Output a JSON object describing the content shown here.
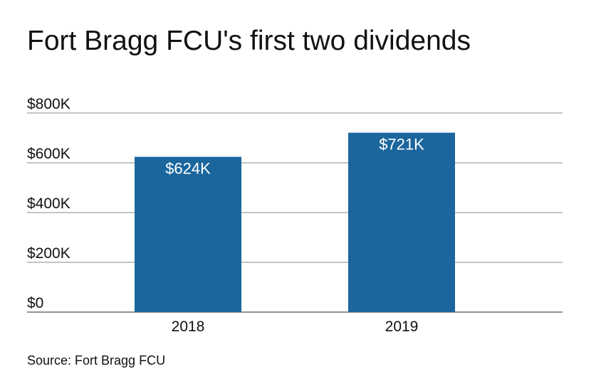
{
  "chart_data": {
    "type": "bar",
    "title": "Fort Bragg FCU's first two dividends",
    "categories": [
      "2018",
      "2019"
    ],
    "values": [
      624,
      721
    ],
    "data_labels": [
      "$624K",
      "$721K"
    ],
    "ylim": [
      0,
      800
    ],
    "yticks": [
      0,
      200,
      400,
      600,
      800
    ],
    "ytick_labels": [
      "$0",
      "$200K",
      "$400K",
      "$600K",
      "$800K"
    ],
    "xlabel": "",
    "ylabel": "",
    "grid": true,
    "bar_color": "#1b669d",
    "source": "Source: Fort Bragg FCU"
  }
}
